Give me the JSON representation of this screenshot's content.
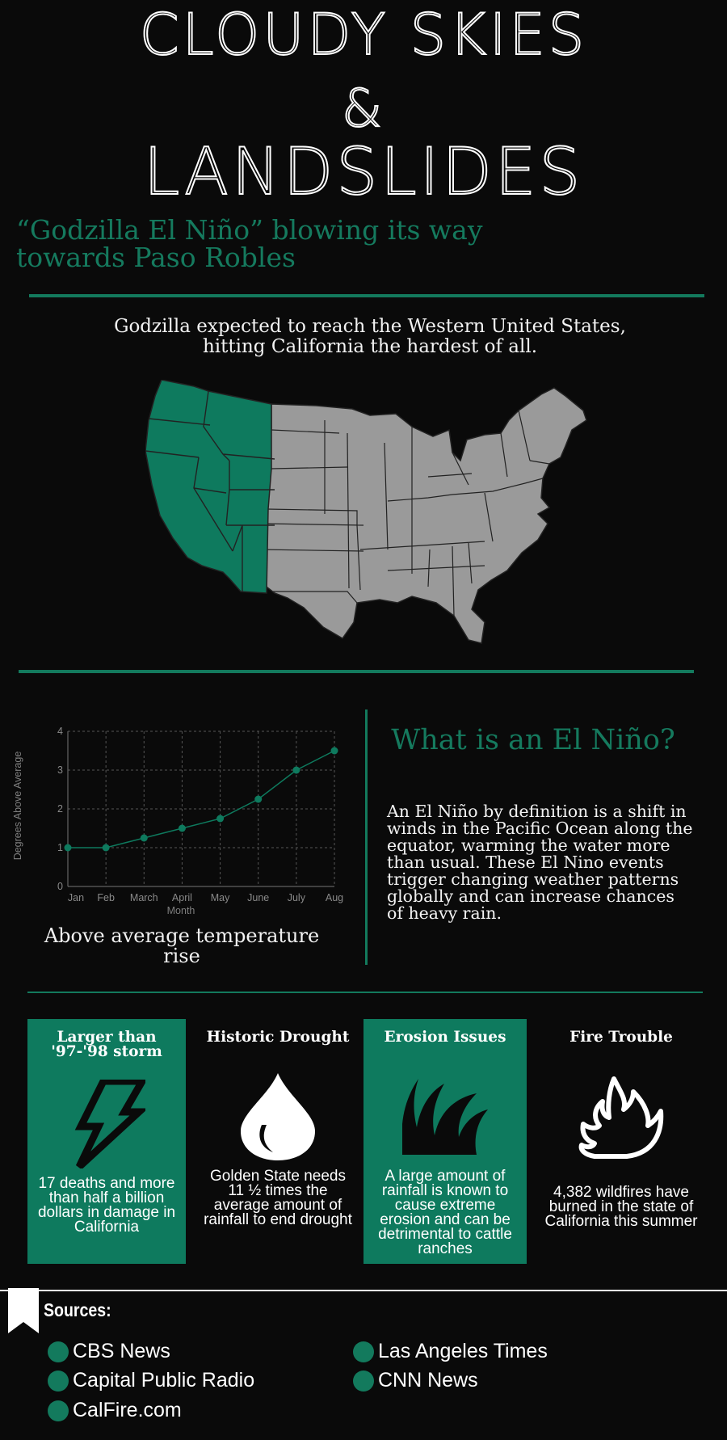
{
  "header": {
    "title_line1": "CLOUDY SKIES",
    "title_line2": "&",
    "title_line3": "LANDSLIDES",
    "subtitle": "“Godzilla El Niño” blowing its way towards Paso Robles"
  },
  "intro": {
    "text": "Godzilla expected to reach the Western United States, hitting California the hardest of all."
  },
  "map": {
    "highlight_color": "#0e7a5e",
    "base_color": "#9a9a9a"
  },
  "chart_data": {
    "type": "line",
    "categories": [
      "Jan",
      "Feb",
      "March",
      "April",
      "May",
      "June",
      "July",
      "Aug"
    ],
    "series": [
      {
        "values": [
          1.0,
          1.0,
          1.25,
          1.5,
          1.75,
          2.25,
          3.0,
          3.5
        ]
      }
    ],
    "xlabel": "Month",
    "ylabel": "Degrees Above Average",
    "ylim": [
      0,
      4
    ],
    "yticks": [
      "0",
      "1",
      "2",
      "3",
      "4"
    ],
    "grid": true,
    "color": "#0e7a5e",
    "caption": "Above average temperature rise"
  },
  "el_nino": {
    "title": "What is an El Niño?",
    "body": "An El Niño by definition is a shift in winds in the Pacific Ocean along the equator, warming the water more than usual. These El Nino events trigger changing weather patterns globally and can increase chances of heavy rain."
  },
  "cards": [
    {
      "title": "Larger than '97-'98 storm",
      "icon": "lightning-bolt-icon",
      "text": "17 deaths and more than half a billion dollars in damage in California"
    },
    {
      "title": "Historic Drought",
      "icon": "water-drop-icon",
      "text": "Golden State needs 11 ½ times the average amount of rainfall to end drought"
    },
    {
      "title": "Erosion Issues",
      "icon": "grass-icon",
      "text": "A large amount of rainfall is known to cause extreme erosion and can be detrimental to cattle ranches"
    },
    {
      "title": "Fire Trouble",
      "icon": "flame-icon",
      "text": "4,382 wildfires have burned in the state of California this summer"
    }
  ],
  "sources": {
    "title": "Sources:",
    "items": [
      "CBS News",
      "Capital Public Radio",
      "CalFire.com",
      "Las Angeles Times",
      "CNN News"
    ]
  }
}
